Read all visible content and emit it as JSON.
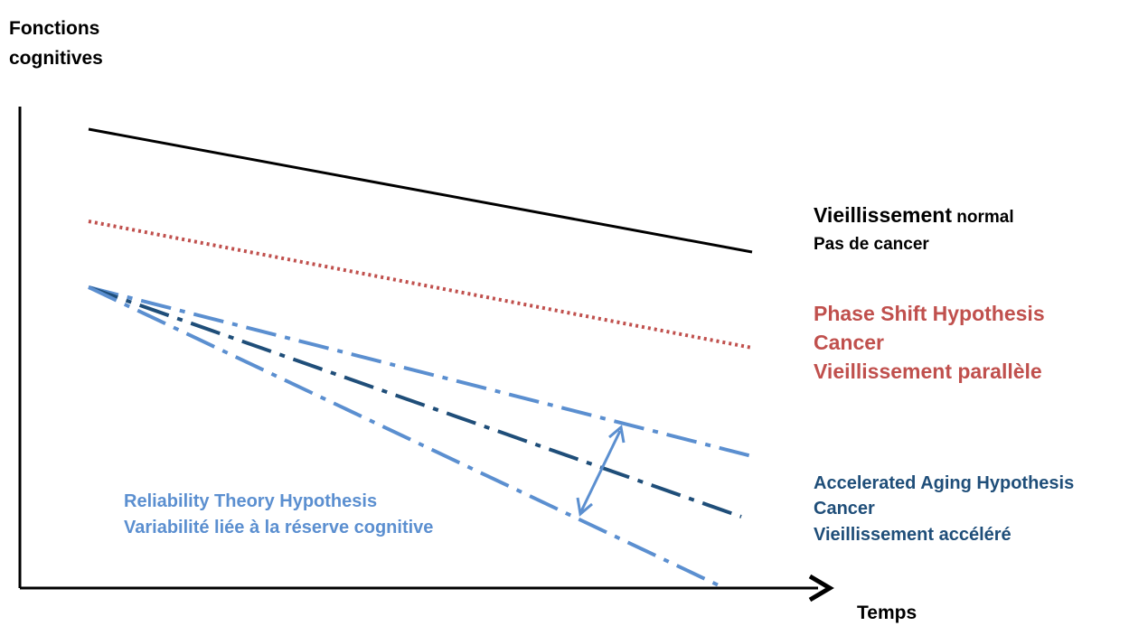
{
  "axes": {
    "y_label_line1": "Fonctions",
    "y_label_line2": "cognitives",
    "x_label": "Temps"
  },
  "normal": {
    "line1_bold": "Vieillissement",
    "line1_rest": " normal",
    "line2": "Pas de cancer",
    "color": "#000000"
  },
  "phase_shift": {
    "line1": "Phase Shift Hypothesis",
    "line2": "Cancer",
    "line3": "Vieillissement parallèle",
    "color": "#c0504d"
  },
  "accelerated": {
    "line1": "Accelerated Aging Hypothesis",
    "line2": "Cancer",
    "line3": "Vieillissement accéléré",
    "color": "#1f4e79"
  },
  "reliability": {
    "line1": "Reliability Theory Hypothesis",
    "line2": "Variabilité liée à la réserve cognitive",
    "color": "#5b8fd0"
  }
}
